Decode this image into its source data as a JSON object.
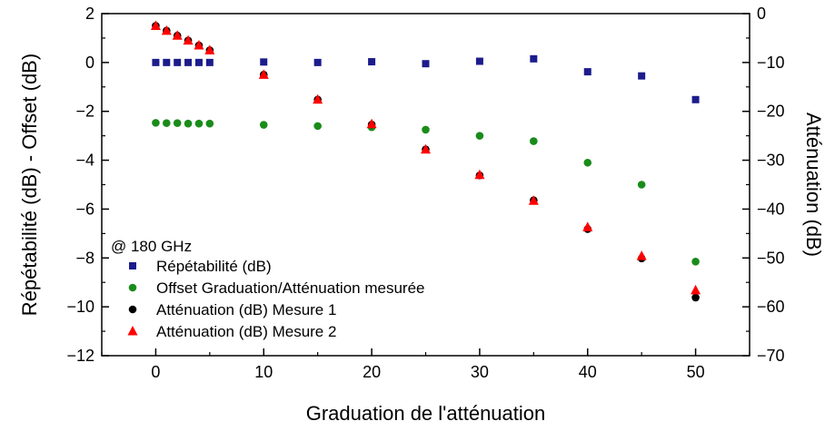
{
  "chart_data": {
    "type": "scatter",
    "title": "",
    "xlabel": "Graduation de l'atténuation",
    "ylabel_left": "Répétabilité (dB) - Offset (dB)",
    "ylabel_right": "Atténuation (dB)",
    "xlim": [
      -5,
      55
    ],
    "ylim_left": [
      -12,
      2
    ],
    "ylim_right": [
      -70,
      0
    ],
    "x_ticks": [
      0,
      10,
      20,
      30,
      40,
      50
    ],
    "y_ticks_left": [
      2,
      0,
      -2,
      -4,
      -6,
      -8,
      -10,
      -12
    ],
    "y_ticks_right": [
      0,
      -10,
      -20,
      -30,
      -40,
      -50,
      -60,
      -70
    ],
    "annotation": "@ 180 GHz",
    "legend_position": "bottom-left",
    "grid": false,
    "series": [
      {
        "name": "Répétabilité (dB)",
        "axis": "left",
        "marker": "square",
        "color": "#1c1c8c",
        "x": [
          0,
          1,
          2,
          3,
          4,
          5,
          10,
          15,
          20,
          25,
          30,
          35,
          40,
          45,
          50
        ],
        "y": [
          0.0,
          0.0,
          0.0,
          0.0,
          0.0,
          0.0,
          0.02,
          0.0,
          0.03,
          -0.05,
          0.05,
          0.15,
          -0.38,
          -0.55,
          -1.52
        ]
      },
      {
        "name": "Offset Graduation/Atténuation mesurée",
        "axis": "left",
        "marker": "circle",
        "color": "#1a8c1a",
        "x": [
          0,
          1,
          2,
          3,
          4,
          5,
          10,
          15,
          20,
          25,
          30,
          35,
          40,
          45,
          50
        ],
        "y": [
          -2.47,
          -2.48,
          -2.48,
          -2.5,
          -2.5,
          -2.5,
          -2.55,
          -2.6,
          -2.65,
          -2.75,
          -3.0,
          -3.22,
          -4.1,
          -5.0,
          -8.15
        ]
      },
      {
        "name": "Atténuation (dB) Mesure 1",
        "axis": "right",
        "marker": "circle",
        "color": "#000000",
        "x": [
          0,
          1,
          2,
          3,
          4,
          5,
          10,
          15,
          20,
          25,
          30,
          35,
          40,
          45,
          50
        ],
        "y": [
          -2.5,
          -3.5,
          -4.5,
          -5.5,
          -6.5,
          -7.5,
          -12.5,
          -17.6,
          -22.7,
          -27.8,
          -33.1,
          -38.2,
          -44.1,
          -50.1,
          -58.1
        ]
      },
      {
        "name": "Atténuation (dB) Mesure 2",
        "axis": "right",
        "marker": "triangle",
        "color": "#ff0000",
        "x": [
          0,
          1,
          2,
          3,
          4,
          5,
          10,
          15,
          20,
          25,
          30,
          35,
          40,
          45,
          50
        ],
        "y": [
          -2.5,
          -3.5,
          -4.5,
          -5.5,
          -6.5,
          -7.5,
          -12.5,
          -17.6,
          -22.6,
          -27.8,
          -33.0,
          -38.3,
          -43.7,
          -49.6,
          -56.6
        ]
      }
    ]
  }
}
